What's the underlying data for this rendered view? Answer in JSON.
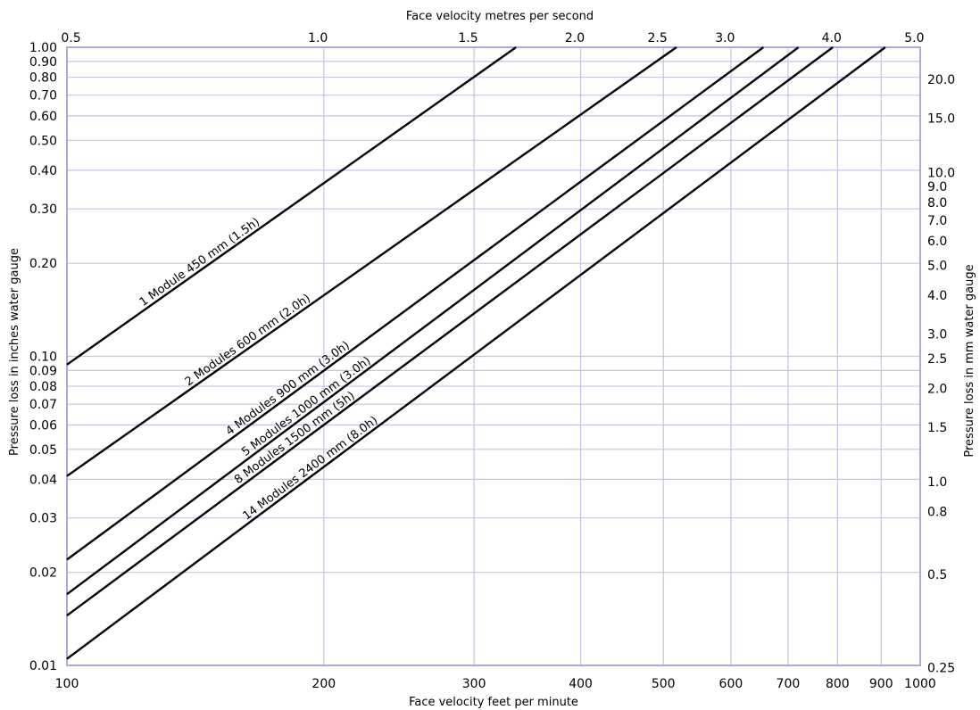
{
  "chart_data": {
    "type": "line",
    "x_scale": "log",
    "y_scale": "log",
    "grid": true,
    "xlim": [
      100,
      1000
    ],
    "ylim": [
      0.01,
      1.0
    ],
    "xlabel": "Face velocity feet per minute",
    "ylabel": "Pressure loss in inches water gauge",
    "x2label": "Face velocity metres per second",
    "y2label": "Pressure loss in mm water gauge",
    "x_ticks": [
      100,
      200,
      300,
      400,
      500,
      600,
      700,
      800,
      900,
      1000
    ],
    "x_tick_labels": [
      "100",
      "200",
      "300",
      "400",
      "500",
      "600",
      "700",
      "800",
      "900",
      "1000"
    ],
    "y_ticks": [
      0.01,
      0.02,
      0.03,
      0.04,
      0.05,
      0.06,
      0.07,
      0.08,
      0.09,
      0.1,
      0.2,
      0.3,
      0.4,
      0.5,
      0.6,
      0.7,
      0.8,
      0.9,
      1.0
    ],
    "y_tick_labels": [
      "0.01",
      "0.02",
      "0.03",
      "0.04",
      "0.05",
      "0.06",
      "0.07",
      "0.08",
      "0.09",
      "0.10",
      "0.20",
      "0.30",
      "0.40",
      "0.50",
      "0.60",
      "0.70",
      "0.80",
      "0.90",
      "1.00"
    ],
    "x2_ticks": [
      0.5,
      1.0,
      1.5,
      2.0,
      2.5,
      3.0,
      4.0,
      5.0
    ],
    "x2_tick_labels": [
      "0.5",
      "1.0",
      "1.5",
      "2.0",
      "2.5",
      "3.0",
      "4.0",
      "5.0"
    ],
    "y2_ticks": [
      0.25,
      0.5,
      0.8,
      1.0,
      1.5,
      2.0,
      2.5,
      3.0,
      4.0,
      5.0,
      6.0,
      7.0,
      8.0,
      9.0,
      10.0,
      15.0,
      20.0
    ],
    "y2_tick_labels": [
      "0.25",
      "0.5",
      "0.8",
      "1.0",
      "1.5",
      "2.0",
      "2.5",
      "3.0",
      "4.0",
      "5.0",
      "6.0",
      "7.0",
      "8.0",
      "9.0",
      "10.0",
      "15.0",
      "20.0"
    ],
    "series": [
      {
        "name": "1 Module 450 mm (1.5h)",
        "x": [
          100,
          336
        ],
        "y": [
          0.094,
          1.0
        ]
      },
      {
        "name": "2 Modules 600 mm (2.0h)",
        "x": [
          100,
          518
        ],
        "y": [
          0.041,
          1.0
        ]
      },
      {
        "name": "4 Modules 900 mm (3.0h)",
        "x": [
          100,
          655
        ],
        "y": [
          0.022,
          1.0
        ]
      },
      {
        "name": "5 Modules 1000 mm (3.0h)",
        "x": [
          100,
          720
        ],
        "y": [
          0.017,
          1.0
        ]
      },
      {
        "name": "8 Modules 1500 mm (5h)",
        "x": [
          100,
          790
        ],
        "y": [
          0.0145,
          1.0
        ]
      },
      {
        "name": "14 Modules 2400 mm (8.0h)",
        "x": [
          100,
          910
        ],
        "y": [
          0.0105,
          1.0
        ]
      }
    ]
  }
}
